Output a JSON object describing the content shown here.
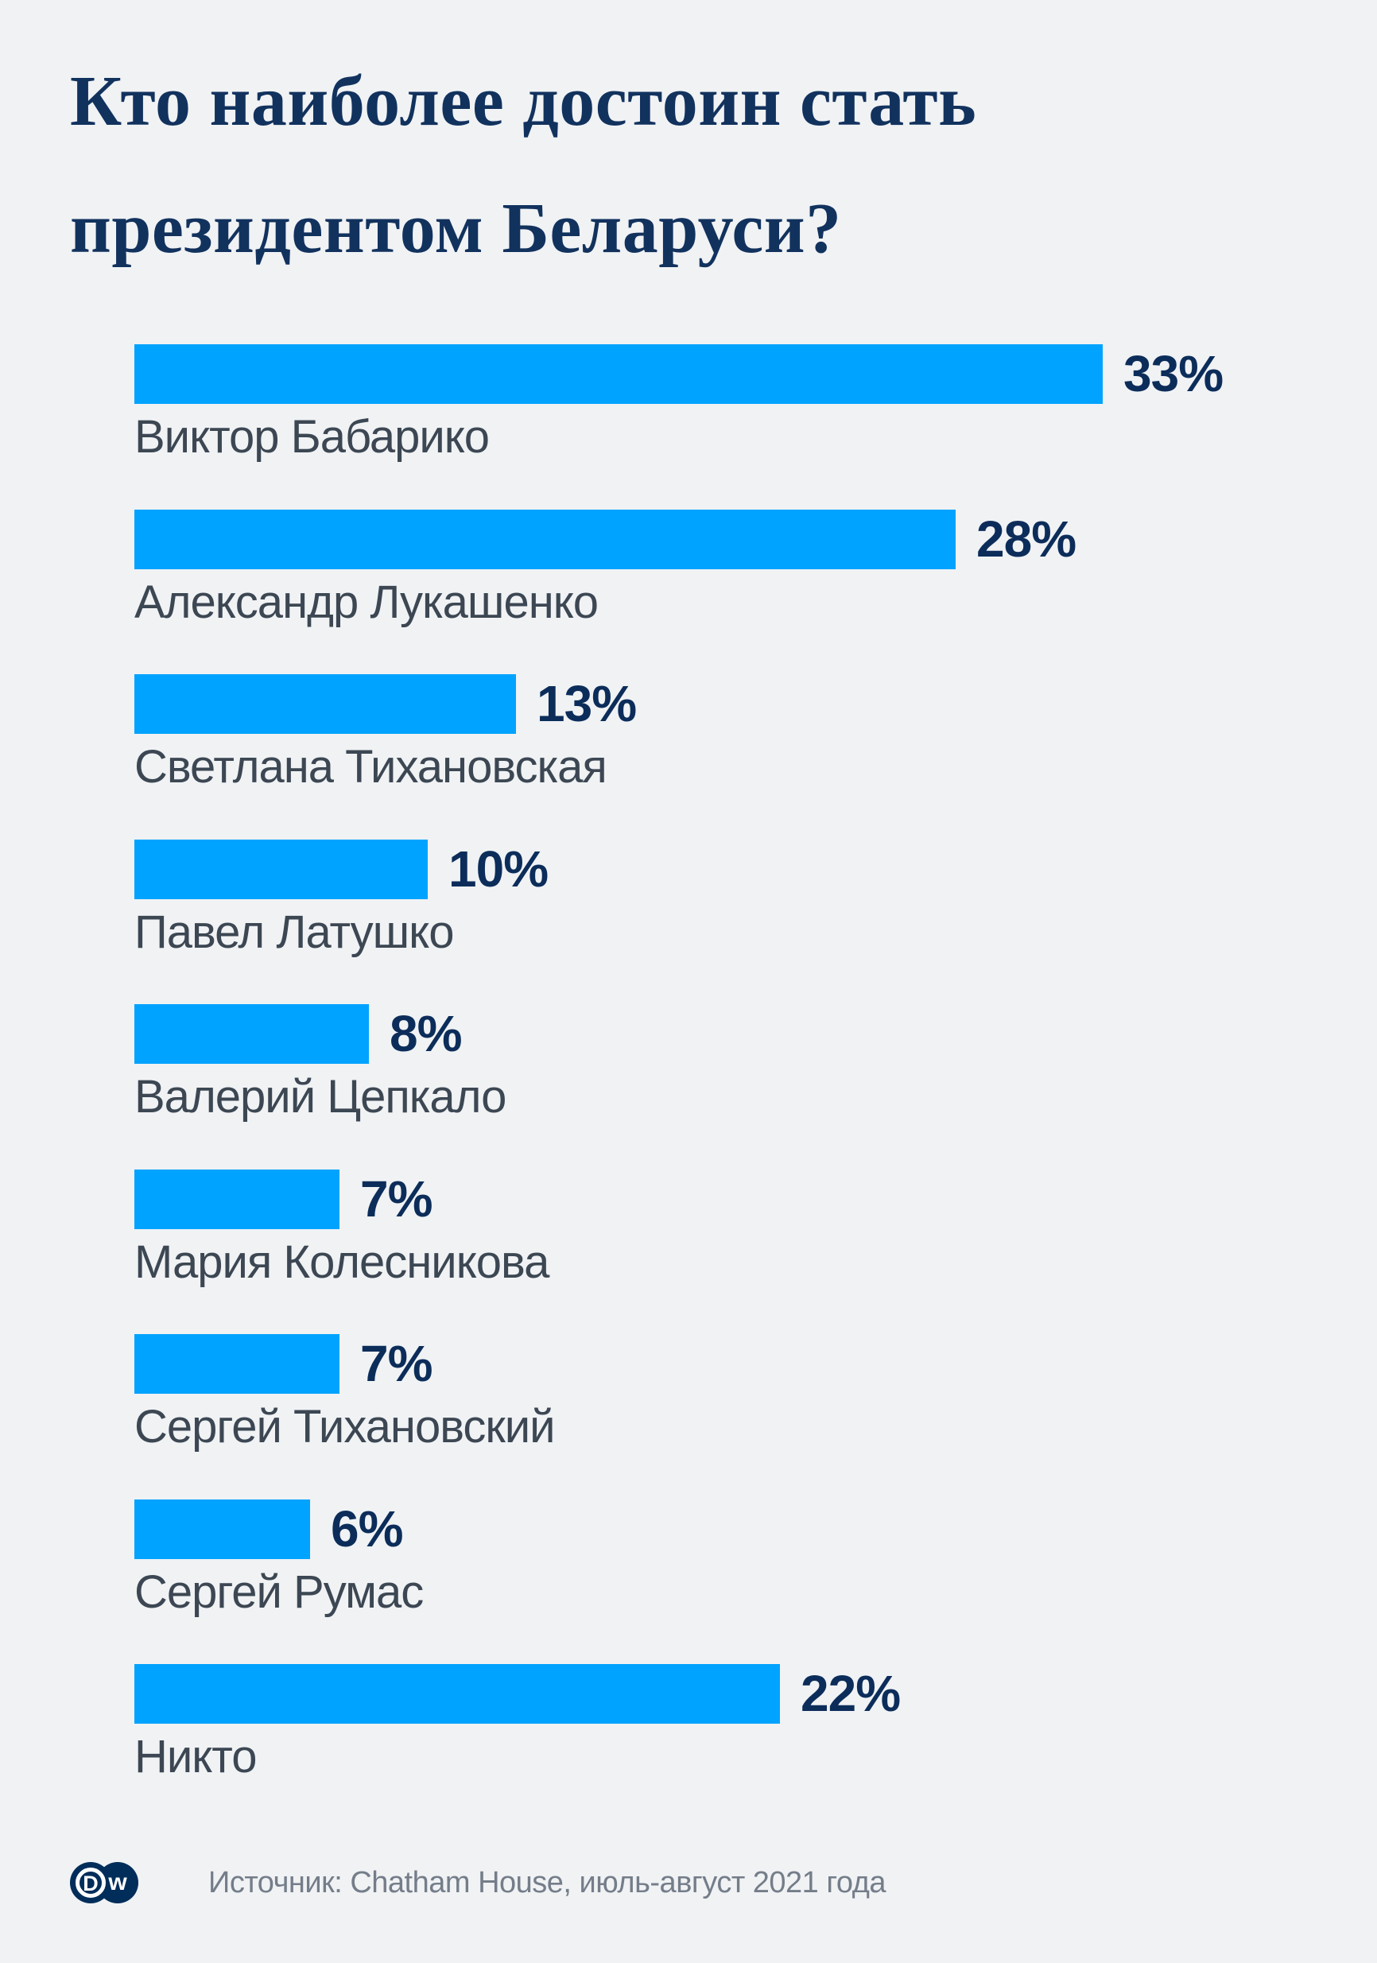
{
  "title": {
    "line1": "Кто наиболее достоин стать",
    "line2": "президентом Беларуси?"
  },
  "rows": [
    {
      "label": "Виктор Бабарико",
      "value": 33,
      "value_label": "33%"
    },
    {
      "label": "Александр Лукашенко",
      "value": 28,
      "value_label": "28%"
    },
    {
      "label": "Светлана Тихановская",
      "value": 13,
      "value_label": "13%"
    },
    {
      "label": "Павел Латушко",
      "value": 10,
      "value_label": "10%"
    },
    {
      "label": "Валерий Цепкало",
      "value": 8,
      "value_label": "8%"
    },
    {
      "label": "Мария Колесникова",
      "value": 7,
      "value_label": "7%"
    },
    {
      "label": "Сергей Тихановский",
      "value": 7,
      "value_label": "7%"
    },
    {
      "label": "Сергей Румас",
      "value": 6,
      "value_label": "6%"
    },
    {
      "label": "Никто",
      "value": 22,
      "value_label": "22%"
    }
  ],
  "footer": {
    "source": "Источник: Chatham House, июль-август 2021 года",
    "logo_d": "D",
    "logo_w": "w"
  },
  "colors": {
    "background": "#f0f2f4",
    "bar": "#00a3ff",
    "title": "#12325e",
    "value": "#0c2d5a",
    "label": "#3c4753",
    "source_text": "#747d89",
    "logo": "#002d5a"
  },
  "chart_data": {
    "type": "bar",
    "orientation": "horizontal",
    "title": "Кто наиболее достоин стать президентом Беларуси?",
    "categories": [
      "Виктор Бабарико",
      "Александр Лукашенко",
      "Светлана Тихановская",
      "Павел Латушко",
      "Валерий Цепкало",
      "Мария Колесникова",
      "Сергей Тихановский",
      "Сергей Румас",
      "Никто"
    ],
    "values": [
      33,
      28,
      13,
      10,
      8,
      7,
      7,
      6,
      22
    ],
    "unit": "%",
    "xlabel": "",
    "ylabel": "",
    "xlim": [
      0,
      35
    ],
    "grid": false,
    "legend": false,
    "data_labels": "outside-end",
    "bar_color": "#00a3ff",
    "source": "Источник: Chatham House, июль-август 2021 года"
  }
}
